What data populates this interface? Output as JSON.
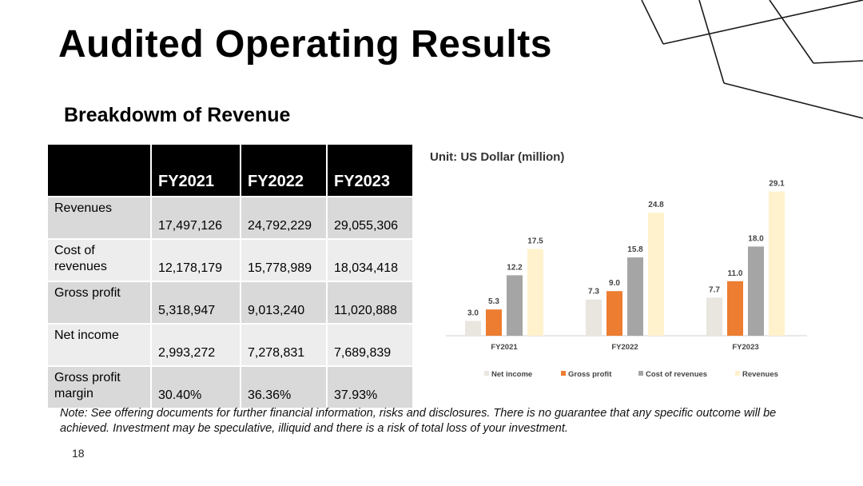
{
  "slide": {
    "title": "Audited Operating Results",
    "subtitle": "Breakdowm of Revenue",
    "note": "Note: See offering documents for further financial information, risks and disclosures. There is no guarantee that any specific outcome will be achieved. Investment may be speculative, illiquid and there is a risk of total loss of your investment.",
    "page_number": "18"
  },
  "table": {
    "headers": [
      "",
      "FY2021",
      "FY2022",
      "FY2023"
    ],
    "rows": [
      {
        "label": "Revenues",
        "values": [
          "17,497,126",
          "24,792,229",
          "29,055,306"
        ]
      },
      {
        "label": "Cost of revenues",
        "values": [
          "12,178,179",
          "15,778,989",
          "18,034,418"
        ]
      },
      {
        "label": "Gross profit",
        "values": [
          "5,318,947",
          "9,013,240",
          "11,020,888"
        ]
      },
      {
        "label": "Net income",
        "values": [
          "2,993,272",
          "7,278,831",
          "7,689,839"
        ]
      },
      {
        "label": "Gross profit margin",
        "values": [
          "30.40%",
          "36.36%",
          "37.93%"
        ]
      }
    ]
  },
  "chart_data": {
    "type": "bar",
    "unit_label": "Unit: US Dollar (million)",
    "categories": [
      "FY2021",
      "FY2022",
      "FY2023"
    ],
    "series": [
      {
        "name": "Net income",
        "color": "#e8e6df",
        "values": [
          3.0,
          7.3,
          7.7
        ]
      },
      {
        "name": "Gross profit",
        "color": "#ed7d31",
        "values": [
          5.3,
          9.0,
          11.0
        ]
      },
      {
        "name": "Cost of revenues",
        "color": "#a5a5a5",
        "values": [
          12.2,
          15.8,
          18.0
        ]
      },
      {
        "name": "Revenues",
        "color": "#fff2cc",
        "values": [
          17.5,
          24.8,
          29.1
        ]
      }
    ],
    "ylim": [
      0,
      30
    ],
    "legend_position": "bottom",
    "grid": false
  },
  "colors": {
    "header_bg": "#000000",
    "row_dark": "#d9d9d9",
    "row_light": "#ededed"
  }
}
